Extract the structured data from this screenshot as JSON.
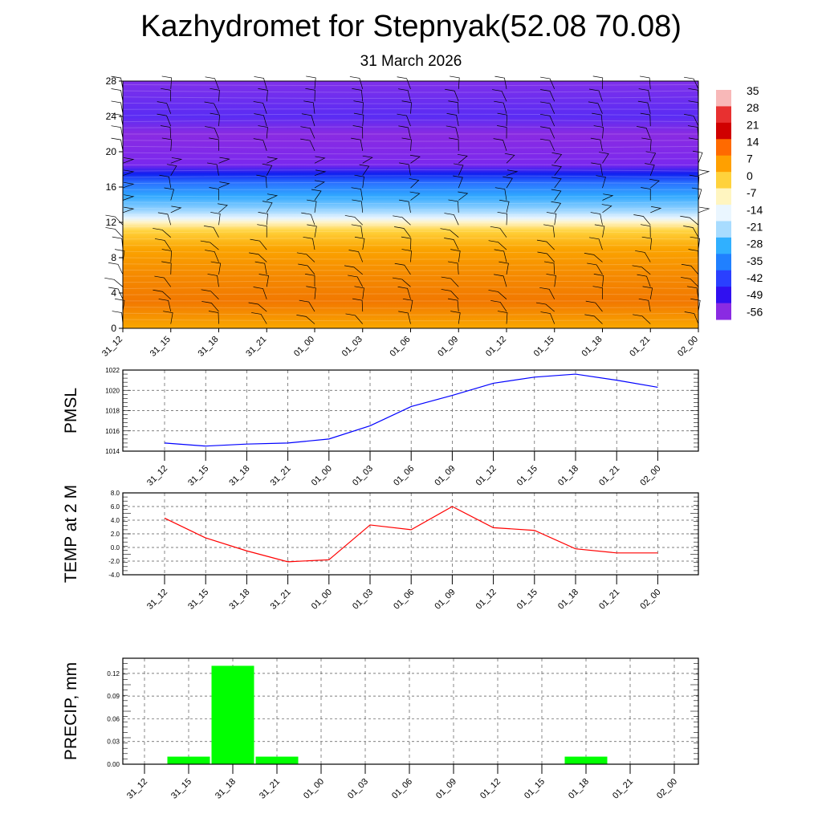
{
  "title": "Kazhydromet for Stepnyak(52.08 70.08)",
  "subtitle": "31 March 2026",
  "chart_data": [
    {
      "type": "heatmap",
      "name": "cross-section",
      "x_labels": [
        "31_12",
        "31_15",
        "31_18",
        "31_21",
        "01_00",
        "01_03",
        "01_06",
        "01_09",
        "01_12",
        "01_15",
        "01_18",
        "01_21",
        "02_00"
      ],
      "y_ticks": [
        0,
        4,
        8,
        12,
        16,
        20,
        24,
        28
      ],
      "ylim": [
        0,
        28
      ],
      "colorbar_labels": [
        "35",
        "28",
        "21",
        "14",
        "7",
        "0",
        "-7",
        "-14",
        "-21",
        "-28",
        "-35",
        "-42",
        "-49",
        "-56"
      ],
      "colorbar_colors": [
        "#f8b8b8",
        "#e83030",
        "#d00000",
        "#ff6a00",
        "#ffa000",
        "#ffd23c",
        "#fff5c0",
        "#eaf6ff",
        "#a8dcff",
        "#30b0ff",
        "#2080ff",
        "#2a40ff",
        "#3010f0",
        "#8a2be2"
      ],
      "layers": [
        {
          "h": 0,
          "color": "#f9a800"
        },
        {
          "h": 3,
          "color": "#f27800"
        },
        {
          "h": 6,
          "color": "#f58a00"
        },
        {
          "h": 9,
          "color": "#fba400"
        },
        {
          "h": 11,
          "color": "#ffd23c"
        },
        {
          "h": 12,
          "color": "#fff4c8"
        },
        {
          "h": 12.5,
          "color": "#e6f4ff"
        },
        {
          "h": 13.5,
          "color": "#8fd0ff"
        },
        {
          "h": 15,
          "color": "#30a8ff"
        },
        {
          "h": 16.5,
          "color": "#2a70ff"
        },
        {
          "h": 17.5,
          "color": "#1020f0"
        },
        {
          "h": 18.5,
          "color": "#7a28ee"
        },
        {
          "h": 22,
          "color": "#8a2be2"
        },
        {
          "h": 24,
          "color": "#5a2cf4"
        },
        {
          "h": 28,
          "color": "#8030ea"
        }
      ]
    },
    {
      "type": "line",
      "ylabel": "PMSL",
      "x_labels": [
        "31_12",
        "31_15",
        "31_18",
        "31_21",
        "01_00",
        "01_03",
        "01_06",
        "01_09",
        "01_12",
        "01_15",
        "01_18",
        "01_21",
        "02_00"
      ],
      "values": [
        1014.8,
        1014.5,
        1014.7,
        1014.8,
        1015.2,
        1016.5,
        1018.4,
        1019.5,
        1020.7,
        1021.3,
        1021.6,
        1021.0,
        1020.3
      ],
      "ylim": [
        1014,
        1022
      ],
      "y_ticks": [
        "1014",
        "1016",
        "1018",
        "1020",
        "1022"
      ],
      "color": "#0000ff"
    },
    {
      "type": "line",
      "ylabel": "TEMP at 2 M",
      "x_labels": [
        "31_12",
        "31_15",
        "31_18",
        "31_21",
        "01_00",
        "01_03",
        "01_06",
        "01_09",
        "01_12",
        "01_15",
        "01_18",
        "01_21",
        "02_00"
      ],
      "values": [
        4.3,
        1.4,
        -0.5,
        -2.1,
        -1.8,
        3.3,
        2.6,
        6.0,
        2.9,
        2.5,
        -0.2,
        -0.8,
        -0.8
      ],
      "ylim": [
        -4,
        8
      ],
      "y_ticks": [
        "-4.0",
        "-2.0",
        "0.0",
        "2.0",
        "4.0",
        "6.0",
        "8.0"
      ],
      "color": "#ff0000"
    },
    {
      "type": "bar",
      "ylabel": "PRECIP, mm",
      "x_labels": [
        "31_12",
        "31_15",
        "31_18",
        "31_21",
        "01_00",
        "01_03",
        "01_06",
        "01_09",
        "01_12",
        "01_15",
        "01_18",
        "01_21",
        "02_00"
      ],
      "values": [
        0,
        0.01,
        0.13,
        0.01,
        0,
        0,
        0,
        0,
        0,
        0,
        0.01,
        0,
        0
      ],
      "ylim": [
        0,
        0.14
      ],
      "y_ticks": [
        "0.00",
        "0.03",
        "0.06",
        "0.09",
        "0.12"
      ],
      "color": "#00ff00"
    }
  ]
}
